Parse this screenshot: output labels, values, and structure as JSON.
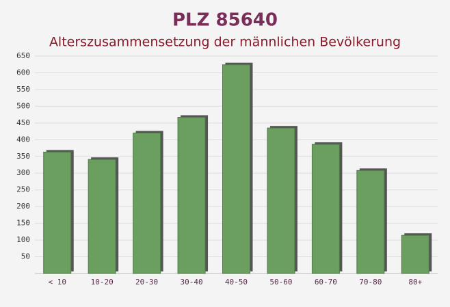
{
  "chart_data": {
    "type": "bar",
    "title": "PLZ 85640",
    "subtitle": "Alterszusammensetzung der männlichen Bevölkerung",
    "categories": [
      "< 10",
      "10-20",
      "20-30",
      "30-40",
      "40-50",
      "50-60",
      "60-70",
      "70-80",
      "80+"
    ],
    "values": [
      363,
      341,
      420,
      467,
      624,
      435,
      386,
      308,
      114
    ],
    "color": "#6a9f5f",
    "ylim": [
      0,
      650
    ],
    "yticks": [
      50,
      100,
      150,
      200,
      250,
      300,
      350,
      400,
      450,
      500,
      550,
      600,
      650
    ],
    "grid": true
  }
}
